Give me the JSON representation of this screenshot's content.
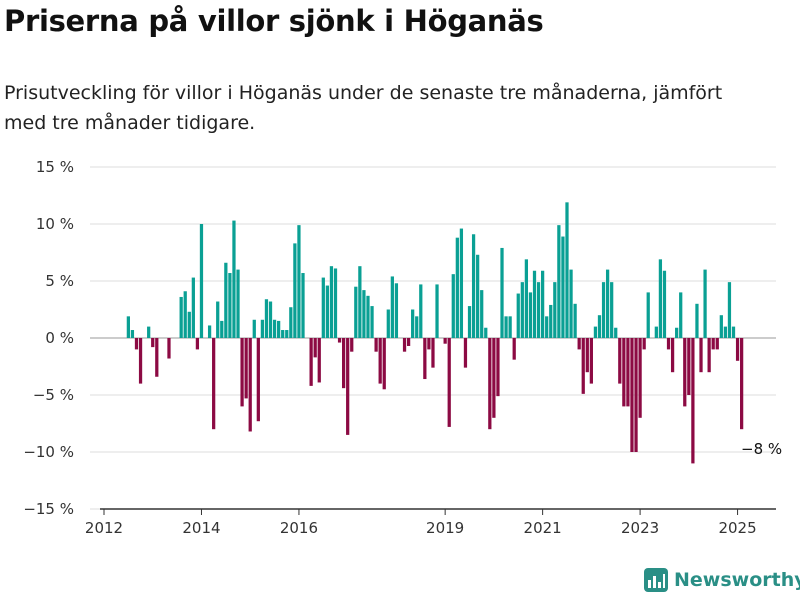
{
  "title": "Priserna på villor sjönk i Höganäs",
  "subtitle": "Prisutveckling för villor i Höganäs under de senaste tre månaderna, jämfört med tre månader tidigare.",
  "brand": "Newsworthy",
  "colors": {
    "positive": "#0aa094",
    "negative": "#8c0a43",
    "grid": "#dddddd",
    "axis": "#333333",
    "brand": "#2a8f86"
  },
  "chart_data": {
    "type": "bar",
    "title": "Priserna på villor sjönk i Höganäs",
    "xlabel": "",
    "ylabel": "",
    "x_start": "2012-07",
    "x_step": "month",
    "x_ticks": [
      "2012",
      "2014",
      "2016",
      "2019",
      "2021",
      "2023",
      "2025"
    ],
    "x_tick_dates": [
      "2012-01",
      "2014-01",
      "2016-01",
      "2019-01",
      "2021-01",
      "2023-01",
      "2025-01"
    ],
    "ylim": [
      -15,
      15
    ],
    "y_ticks": [
      15,
      10,
      5,
      0,
      -5,
      -10,
      -15
    ],
    "y_tick_labels": [
      "15 %",
      "10 %",
      "5 %",
      "0 %",
      "−5 %",
      "−10 %",
      "−15 %"
    ],
    "annotation": "−8 %",
    "grid": true,
    "values": [
      1.9,
      0.7,
      -1.0,
      -4.0,
      0,
      1.0,
      -0.8,
      -3.4,
      0,
      0,
      -1.8,
      0,
      0,
      3.6,
      4.1,
      2.3,
      5.3,
      -1.0,
      10.0,
      0,
      1.1,
      -8.0,
      3.2,
      1.5,
      6.6,
      5.7,
      10.3,
      6.0,
      -6.0,
      -5.3,
      -8.2,
      1.6,
      -7.3,
      1.6,
      3.4,
      3.2,
      1.6,
      1.5,
      0.7,
      0.7,
      2.7,
      8.3,
      9.9,
      5.7,
      0,
      -4.2,
      -1.7,
      -3.9,
      5.3,
      4.6,
      6.3,
      6.1,
      -0.4,
      -4.4,
      -8.5,
      -1.2,
      4.5,
      6.3,
      4.2,
      3.7,
      2.8,
      -1.2,
      -4.0,
      -4.5,
      2.5,
      5.4,
      4.8,
      0,
      -1.2,
      -0.7,
      2.5,
      1.9,
      4.7,
      -3.6,
      -1.0,
      -2.6,
      4.7,
      0,
      -0.5,
      -7.8,
      5.6,
      8.8,
      9.6,
      -2.6,
      2.8,
      9.1,
      7.3,
      4.2,
      0.9,
      -8.0,
      -7.0,
      -5.1,
      7.9,
      1.9,
      1.9,
      -1.9,
      3.9,
      4.9,
      6.9,
      4.0,
      5.9,
      4.9,
      5.9,
      1.9,
      2.9,
      4.9,
      9.9,
      8.9,
      11.9,
      6.0,
      3.0,
      -1.0,
      -4.9,
      -3.0,
      -4.0,
      1.0,
      2.0,
      4.9,
      6.0,
      4.9,
      0.9,
      -4.0,
      -6.0,
      -6.0,
      -10.0,
      -10.0,
      -7.0,
      -1.0,
      4.0,
      0,
      1.0,
      6.9,
      5.9,
      -1.0,
      -3.0,
      0.9,
      4.0,
      -6.0,
      -5.0,
      -11.0,
      3.0,
      -3.0,
      6.0,
      -3.0,
      -1.0,
      -1.0,
      2.0,
      1.0,
      4.9,
      1.0,
      -2.0,
      -8.0
    ]
  }
}
